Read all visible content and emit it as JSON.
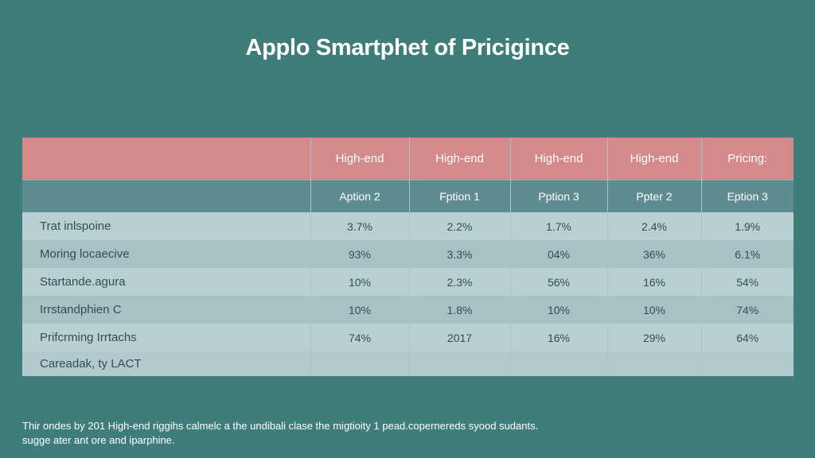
{
  "chart_data": {
    "type": "table",
    "title": "Applo Smartphet of Pricigince",
    "header_row_1": [
      "",
      "High-end",
      "High-end",
      "High-end",
      "High-end",
      "Pricing:"
    ],
    "header_row_2": [
      "",
      "Aption 2",
      "Fption 1",
      "Pption 3",
      "Ppter 2",
      "Eption 3"
    ],
    "rows": [
      {
        "label": "Trat inlspoine",
        "values": [
          "3.7%",
          "2.2%",
          "1.7%",
          "2.4%",
          "1.9%"
        ]
      },
      {
        "label": "Moring locaecive",
        "values": [
          "93%",
          "3.3%",
          "04%",
          "36%",
          "6.1%"
        ]
      },
      {
        "label": "Startande.agura",
        "values": [
          "10%",
          "2.3%",
          "56%",
          "16%",
          "54%"
        ]
      },
      {
        "label": "Irrstandphien C",
        "values": [
          "10%",
          "1.8%",
          "10%",
          "10%",
          "74%"
        ]
      },
      {
        "label": "Prifcrming Irrtachs",
        "values": [
          "74%",
          "2017",
          "16%",
          "29%",
          "64%"
        ]
      },
      {
        "label": "Careadak, ty LACT",
        "values": [
          "",
          "",
          "",
          "",
          ""
        ]
      }
    ]
  },
  "footnote": {
    "line1": "Thir ondes by 201 High-end riggihs calmelc a the undibali clase the migtioity 1 pead.copernereds syood sudants.",
    "line2": "sugge ater ant ore and iparphine."
  },
  "colors": {
    "background": "#3f7d7b",
    "header_primary": "#d4898b",
    "header_secondary": "#5e8c90",
    "row_light": "#b9d0d2",
    "row_dark": "#a6c2c5"
  }
}
